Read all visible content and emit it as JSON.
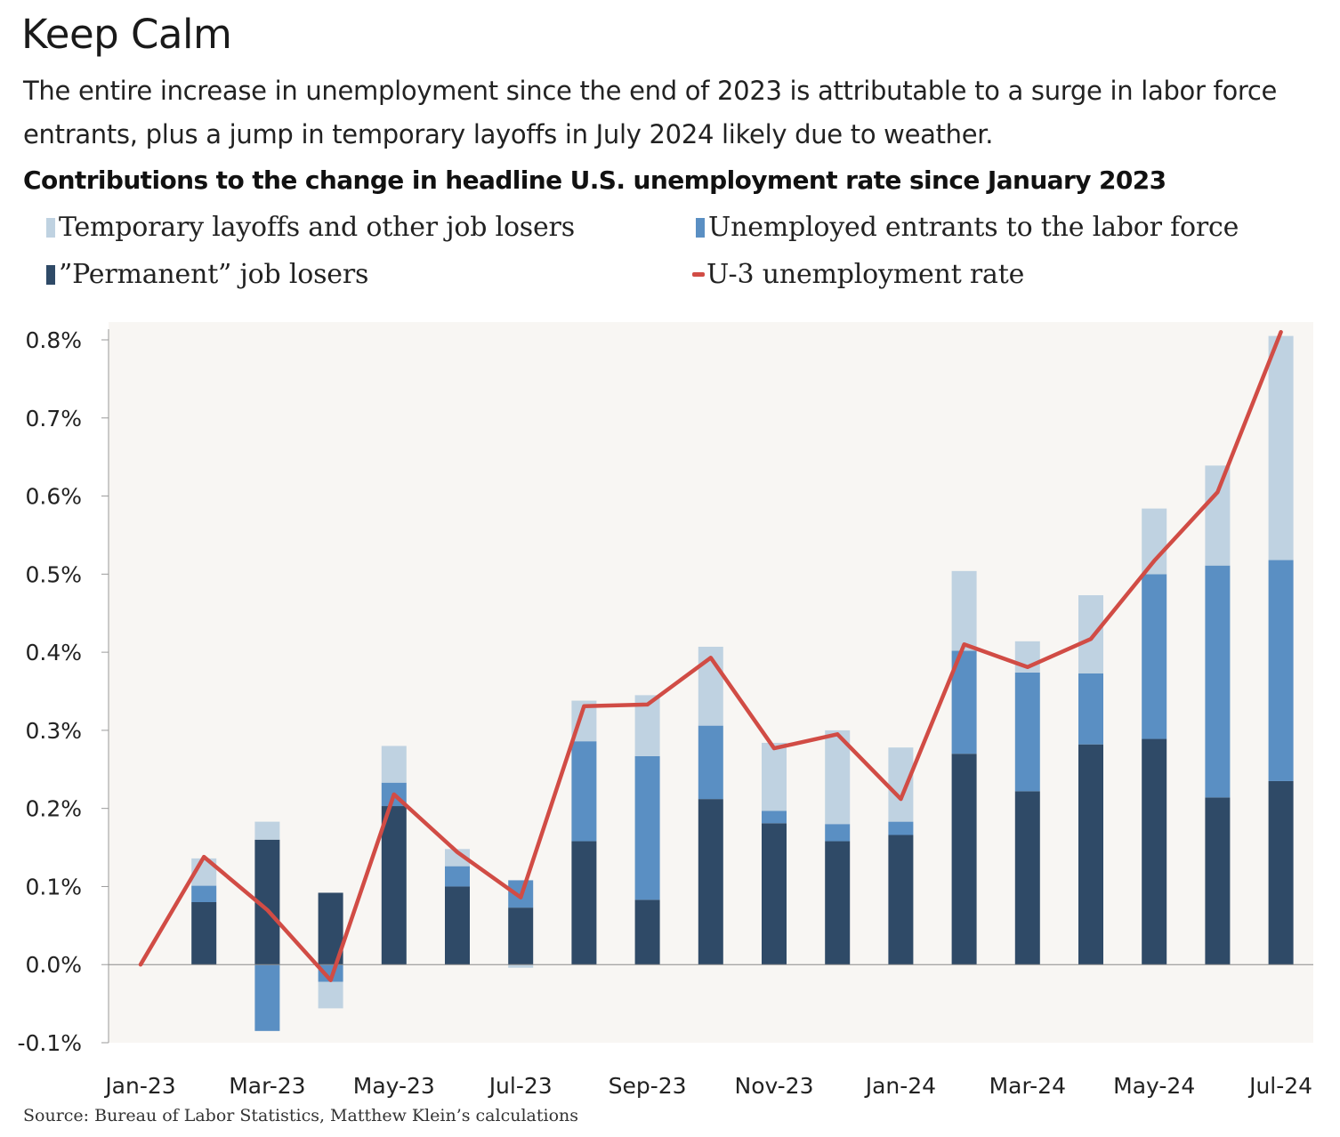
{
  "header": {
    "title": "Keep Calm",
    "subtitle": "The entire increase in unemployment since the end of 2023 is attributable to a surge in labor force entrants, plus a jump in temporary layoffs in July 2024 likely due to weather.",
    "chart_title": "Contributions to the change in headline U.S. unemployment rate since January 2023"
  },
  "legend": {
    "temporary": "Temporary layoffs and other job losers",
    "entrants": "Unemployed entrants to the labor force",
    "permanent": "”Permanent” job losers",
    "u3": "U-3 unemployment rate"
  },
  "footer": {
    "source": "Source: Bureau of Labor Statistics, Matthew Klein’s calculations"
  },
  "colors": {
    "temporary": "#bfd2e1",
    "entrants": "#5a8fc3",
    "permanent": "#2f4a67",
    "u3": "#d14c45",
    "plot_background": "#f8f6f3"
  },
  "chart_data": {
    "type": "bar",
    "stacked": true,
    "title": "Contributions to the change in headline U.S. unemployment rate since January 2023",
    "x": [
      "Jan-23",
      "Feb-23",
      "Mar-23",
      "Apr-23",
      "May-23",
      "Jun-23",
      "Jul-23",
      "Aug-23",
      "Sep-23",
      "Oct-23",
      "Nov-23",
      "Dec-23",
      "Jan-24",
      "Feb-24",
      "Mar-24",
      "Apr-24",
      "May-24",
      "Jun-24",
      "Jul-24"
    ],
    "x_tick_labels": [
      "Jan-23",
      "Mar-23",
      "May-23",
      "Jul-23",
      "Sep-23",
      "Nov-23",
      "Jan-24",
      "Mar-24",
      "May-24",
      "Jul-24"
    ],
    "y_tick_labels": [
      "-0.1%",
      "0.0%",
      "0.1%",
      "0.2%",
      "0.3%",
      "0.4%",
      "0.5%",
      "0.6%",
      "0.7%",
      "0.8%"
    ],
    "ylim": [
      -0.1,
      0.8
    ],
    "y_unit": "%",
    "grid": false,
    "legend_position": "top",
    "series": [
      {
        "name": "”Permanent” job losers",
        "type": "bar",
        "values": [
          0,
          0.08,
          0.16,
          0.092,
          0.203,
          0.1,
          0.073,
          0.158,
          0.083,
          0.212,
          0.181,
          0.158,
          0.166,
          0.27,
          0.222,
          0.282,
          0.289,
          0.214,
          0.235
        ]
      },
      {
        "name": "Unemployed entrants to the labor force",
        "type": "bar",
        "values": [
          0,
          0.021,
          -0.085,
          -0.022,
          0.03,
          0.026,
          0.035,
          0.128,
          0.184,
          0.094,
          0.016,
          0.022,
          0.017,
          0.132,
          0.152,
          0.091,
          0.211,
          0.297,
          0.283
        ]
      },
      {
        "name": "Temporary layoffs and other job losers",
        "type": "bar",
        "values": [
          0,
          0.035,
          0.023,
          -0.034,
          0.047,
          0.022,
          -0.004,
          0.052,
          0.078,
          0.101,
          0.087,
          0.12,
          0.095,
          0.102,
          0.04,
          0.1,
          0.084,
          0.128,
          0.287
        ]
      },
      {
        "name": "U-3 unemployment rate",
        "type": "line",
        "values": [
          0,
          0.138,
          0.07,
          -0.02,
          0.218,
          0.144,
          0.086,
          0.331,
          0.333,
          0.393,
          0.277,
          0.295,
          0.212,
          0.41,
          0.381,
          0.417,
          0.517,
          0.605,
          0.81
        ]
      }
    ]
  }
}
